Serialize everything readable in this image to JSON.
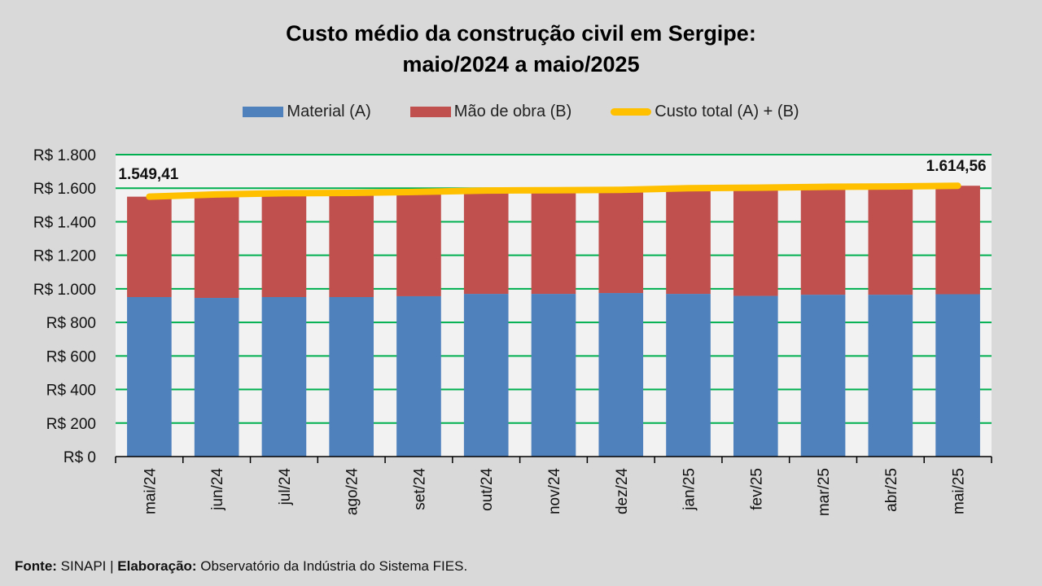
{
  "chart_data": {
    "type": "bar",
    "stacked": true,
    "title_lines": [
      "Custo médio da construção civil em Sergipe:",
      "maio/2024 a maio/2025"
    ],
    "categories": [
      "mai/24",
      "jun/24",
      "jul/24",
      "ago/24",
      "set/24",
      "out/24",
      "nov/24",
      "dez/24",
      "jan/25",
      "fev/25",
      "mar/25",
      "abr/25",
      "mai/25"
    ],
    "series": [
      {
        "name": "Material (A)",
        "type": "bar",
        "color": "#4f81bd",
        "values": [
          951,
          946,
          951,
          951,
          956,
          970,
          970,
          975,
          970,
          958,
          965,
          965,
          968
        ]
      },
      {
        "name": "Mão de obra (B)",
        "type": "bar",
        "color": "#c0504d",
        "values": [
          598.41,
          617,
          619,
          621,
          622,
          616,
          618,
          615,
          630,
          645,
          643,
          645,
          646.56
        ]
      },
      {
        "name": "Custo total (A) + (B)",
        "type": "line",
        "color": "#ffc000",
        "values": [
          1549.41,
          1563,
          1570,
          1572,
          1578,
          1586,
          1588,
          1590,
          1600,
          1603,
          1608,
          1610,
          1614.56
        ]
      }
    ],
    "data_labels": [
      {
        "category": "mai/24",
        "text": "1.549,41"
      },
      {
        "category": "mai/25",
        "text": "1.614,56"
      }
    ],
    "y_ticks": [
      "R$ 0",
      "R$ 200",
      "R$ 400",
      "R$ 600",
      "R$ 800",
      "R$ 1.000",
      "R$ 1.200",
      "R$ 1.400",
      "R$ 1.600",
      "R$ 1.800"
    ],
    "ylim": [
      0,
      1800
    ],
    "y_step": 200,
    "xlabel": "",
    "ylabel": "",
    "grid": true,
    "grid_color": "#00b050",
    "legend_position": "top"
  },
  "footer": {
    "fonte_label": "Fonte:",
    "fonte_value": " SINAPI | ",
    "elab_label": "Elaboração:",
    "elab_value": " Observatório da Indústria do Sistema FIES."
  }
}
